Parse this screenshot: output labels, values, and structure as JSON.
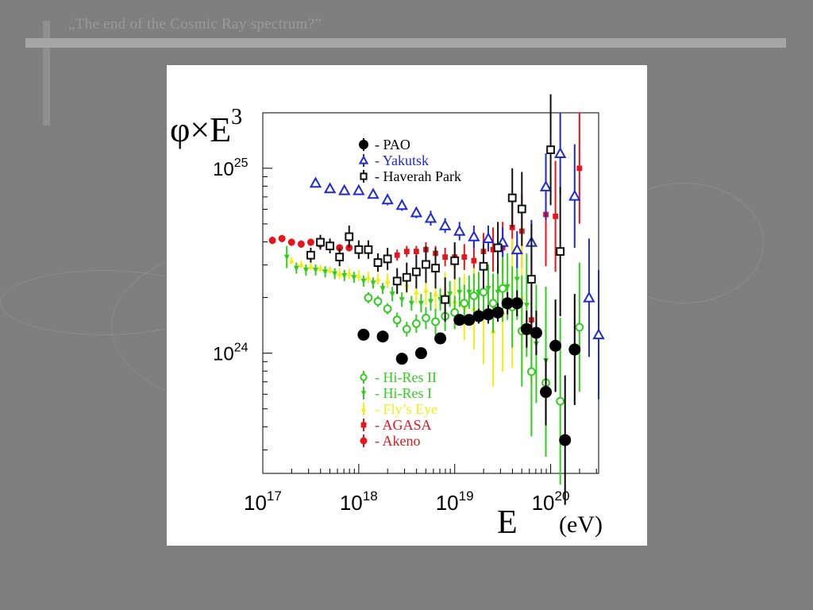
{
  "slide": {
    "title": "„The end of the Cosmic Ray spectrum?”"
  },
  "chart_data": {
    "type": "scatter",
    "title": "",
    "ylabel_main": "φ×E",
    "ylabel_exp": "3",
    "xlabel": "E",
    "xunit": "(eV)",
    "xscale": "log",
    "yscale": "log",
    "xlim_log10": [
      17,
      20.5
    ],
    "ylim_log10": [
      23.35,
      25.3
    ],
    "x_ticks": [
      {
        "exp": 17,
        "base": "10",
        "sup": "17"
      },
      {
        "exp": 18,
        "base": "10",
        "sup": "18"
      },
      {
        "exp": 19,
        "base": "10",
        "sup": "19"
      },
      {
        "exp": 20,
        "base": "10",
        "sup": "20"
      }
    ],
    "y_ticks": [
      {
        "exp": 24,
        "base": "10",
        "sup": "24"
      },
      {
        "exp": 25,
        "base": "10",
        "sup": "25"
      }
    ],
    "legend_top": [
      {
        "series": "pao",
        "label": "- PAO"
      },
      {
        "series": "yakutsk",
        "label": "- Yakutsk"
      },
      {
        "series": "haverah",
        "label": "- Haverah Park"
      }
    ],
    "legend_bottom": [
      {
        "series": "hires2",
        "label": "- Hi-Res II"
      },
      {
        "series": "hires1",
        "label": "- Hi-Res I"
      },
      {
        "series": "flyseye",
        "label": "- Fly’s Eye"
      },
      {
        "series": "agasa",
        "label": "- AGASA"
      },
      {
        "series": "akeno",
        "label": "- Akeno"
      }
    ],
    "series": [
      {
        "key": "akeno",
        "name": "Akeno",
        "color": "#e8141b",
        "marker": "filled-circle",
        "points": [
          [
            17.1,
            24.61,
            0.02
          ],
          [
            17.2,
            24.62,
            0.02
          ],
          [
            17.3,
            24.6,
            0.02
          ],
          [
            17.4,
            24.59,
            0.02
          ],
          [
            17.5,
            24.6,
            0.02
          ],
          [
            17.6,
            24.59,
            0.02
          ],
          [
            17.7,
            24.58,
            0.02
          ],
          [
            17.8,
            24.57,
            0.02
          ],
          [
            17.9,
            24.57,
            0.02
          ]
        ]
      },
      {
        "key": "agasa",
        "name": "AGASA",
        "color": "#e8141b",
        "marker": "filled-square",
        "points": [
          [
            18.4,
            24.53,
            0.03
          ],
          [
            18.5,
            24.55,
            0.03
          ],
          [
            18.6,
            24.55,
            0.03
          ],
          [
            18.7,
            24.56,
            0.04
          ],
          [
            18.8,
            24.54,
            0.04
          ],
          [
            18.9,
            24.52,
            0.05
          ],
          [
            19.0,
            24.52,
            0.06
          ],
          [
            19.1,
            24.52,
            0.07
          ],
          [
            19.2,
            24.5,
            0.09
          ],
          [
            19.3,
            24.55,
            0.1
          ],
          [
            19.4,
            24.56,
            0.12
          ],
          [
            19.5,
            24.57,
            0.14
          ],
          [
            19.6,
            24.68,
            0.15
          ],
          [
            19.7,
            24.66,
            0.2
          ],
          [
            19.8,
            24.18,
            0.35
          ],
          [
            19.95,
            24.75,
            0.28
          ],
          [
            20.05,
            24.74,
            0.3
          ],
          [
            20.3,
            25.0,
            0.3
          ]
        ]
      },
      {
        "key": "flyseye",
        "name": "Fly’s Eye",
        "color": "#f1ef12",
        "marker": "filled-triangle",
        "points": [
          [
            17.3,
            24.5,
            0.02
          ],
          [
            17.4,
            24.48,
            0.02
          ],
          [
            17.5,
            24.47,
            0.02
          ],
          [
            17.6,
            24.46,
            0.02
          ],
          [
            17.7,
            24.45,
            0.02
          ],
          [
            17.8,
            24.43,
            0.03
          ],
          [
            17.9,
            24.43,
            0.03
          ],
          [
            18.0,
            24.42,
            0.03
          ],
          [
            18.1,
            24.41,
            0.03
          ],
          [
            18.2,
            24.4,
            0.03
          ],
          [
            18.3,
            24.39,
            0.04
          ],
          [
            18.4,
            24.39,
            0.04
          ],
          [
            18.5,
            24.37,
            0.05
          ],
          [
            18.6,
            24.33,
            0.06
          ],
          [
            18.7,
            24.34,
            0.08
          ],
          [
            18.8,
            24.32,
            0.1
          ],
          [
            18.9,
            24.32,
            0.12
          ],
          [
            19.0,
            24.28,
            0.15
          ],
          [
            19.1,
            24.25,
            0.18
          ],
          [
            19.2,
            24.24,
            0.22
          ],
          [
            19.3,
            24.2,
            0.26
          ],
          [
            19.4,
            24.12,
            0.3
          ],
          [
            19.5,
            24.22,
            0.32
          ],
          [
            19.6,
            24.27,
            0.35
          ],
          [
            19.7,
            24.3,
            0.4
          ]
        ]
      },
      {
        "key": "hires1",
        "name": "Hi-Res I",
        "color": "#33cc20",
        "marker": "filled-inverted-triangle",
        "points": [
          [
            17.25,
            24.52,
            0.06
          ],
          [
            17.35,
            24.46,
            0.03
          ],
          [
            17.45,
            24.45,
            0.03
          ],
          [
            17.55,
            24.45,
            0.03
          ],
          [
            17.65,
            24.44,
            0.03
          ],
          [
            17.75,
            24.43,
            0.03
          ],
          [
            17.85,
            24.42,
            0.03
          ],
          [
            17.95,
            24.41,
            0.03
          ],
          [
            18.05,
            24.39,
            0.03
          ],
          [
            18.15,
            24.38,
            0.03
          ],
          [
            18.25,
            24.35,
            0.03
          ],
          [
            18.35,
            24.32,
            0.04
          ],
          [
            18.45,
            24.29,
            0.04
          ],
          [
            18.55,
            24.27,
            0.04
          ],
          [
            18.65,
            24.27,
            0.05
          ],
          [
            18.75,
            24.28,
            0.05
          ],
          [
            18.85,
            24.29,
            0.06
          ],
          [
            18.95,
            24.32,
            0.07
          ],
          [
            19.05,
            24.33,
            0.08
          ],
          [
            19.15,
            24.33,
            0.09
          ],
          [
            19.25,
            24.33,
            0.11
          ],
          [
            19.35,
            24.35,
            0.13
          ],
          [
            19.45,
            24.33,
            0.15
          ],
          [
            19.55,
            24.36,
            0.18
          ],
          [
            19.65,
            24.4,
            0.22
          ],
          [
            19.75,
            24.26,
            0.28
          ],
          [
            19.85,
            24.05,
            0.32
          ],
          [
            19.95,
            23.96,
            0.4
          ]
        ]
      },
      {
        "key": "hires2",
        "name": "Hi-Res II",
        "color": "#33cc20",
        "marker": "open-circle",
        "points": [
          [
            18.1,
            24.3,
            0.03
          ],
          [
            18.2,
            24.28,
            0.03
          ],
          [
            18.3,
            24.24,
            0.03
          ],
          [
            18.4,
            24.18,
            0.04
          ],
          [
            18.5,
            24.13,
            0.04
          ],
          [
            18.6,
            24.16,
            0.05
          ],
          [
            18.7,
            24.19,
            0.06
          ],
          [
            18.8,
            24.17,
            0.07
          ],
          [
            18.9,
            24.2,
            0.08
          ],
          [
            19.0,
            24.22,
            0.09
          ],
          [
            19.1,
            24.27,
            0.1
          ],
          [
            19.2,
            24.31,
            0.12
          ],
          [
            19.3,
            24.33,
            0.14
          ],
          [
            19.4,
            24.27,
            0.16
          ],
          [
            19.5,
            24.35,
            0.18
          ],
          [
            19.6,
            24.25,
            0.22
          ],
          [
            19.7,
            24.12,
            0.3
          ],
          [
            19.8,
            23.9,
            0.35
          ],
          [
            19.95,
            23.84,
            0.4
          ],
          [
            20.1,
            23.74,
            0.45
          ],
          [
            20.3,
            24.14,
            0.35
          ]
        ]
      },
      {
        "key": "yakutsk",
        "name": "Yakutsk",
        "color": "#1f2ad0",
        "marker": "open-triangle",
        "points": [
          [
            17.55,
            24.92,
            0.02
          ],
          [
            17.7,
            24.89,
            0.02
          ],
          [
            17.85,
            24.88,
            0.02
          ],
          [
            18.0,
            24.88,
            0.02
          ],
          [
            18.15,
            24.86,
            0.02
          ],
          [
            18.3,
            24.83,
            0.03
          ],
          [
            18.45,
            24.8,
            0.03
          ],
          [
            18.6,
            24.76,
            0.03
          ],
          [
            18.75,
            24.73,
            0.04
          ],
          [
            18.9,
            24.69,
            0.04
          ],
          [
            19.05,
            24.66,
            0.05
          ],
          [
            19.2,
            24.63,
            0.06
          ],
          [
            19.35,
            24.62,
            0.07
          ],
          [
            19.5,
            24.6,
            0.08
          ],
          [
            19.65,
            24.56,
            0.1
          ],
          [
            19.8,
            24.6,
            0.12
          ],
          [
            19.95,
            24.9,
            0.18
          ],
          [
            20.1,
            25.08,
            0.22
          ],
          [
            20.25,
            24.85,
            0.28
          ],
          [
            20.4,
            24.3,
            0.32
          ],
          [
            20.5,
            24.1,
            0.35
          ]
        ]
      },
      {
        "key": "haverah",
        "name": "Haverah Park",
        "color": "#111111",
        "marker": "open-square",
        "points": [
          [
            17.5,
            24.53,
            0.04
          ],
          [
            17.6,
            24.6,
            0.04
          ],
          [
            17.7,
            24.58,
            0.04
          ],
          [
            17.8,
            24.52,
            0.05
          ],
          [
            17.9,
            24.63,
            0.06
          ],
          [
            18.0,
            24.56,
            0.05
          ],
          [
            18.1,
            24.56,
            0.05
          ],
          [
            18.2,
            24.49,
            0.05
          ],
          [
            18.3,
            24.51,
            0.06
          ],
          [
            18.4,
            24.39,
            0.07
          ],
          [
            18.5,
            24.41,
            0.08
          ],
          [
            18.6,
            24.44,
            0.09
          ],
          [
            18.7,
            24.48,
            0.1
          ],
          [
            18.8,
            24.46,
            0.11
          ],
          [
            18.9,
            24.29,
            0.12
          ],
          [
            19.0,
            24.5,
            0.1
          ],
          [
            19.3,
            24.47,
            0.12
          ],
          [
            19.45,
            24.57,
            0.14
          ],
          [
            19.6,
            24.84,
            0.16
          ],
          [
            19.7,
            24.78,
            0.2
          ],
          [
            19.8,
            24.4,
            0.3
          ],
          [
            20.0,
            25.1,
            0.3
          ],
          [
            20.1,
            24.55,
            0.35
          ]
        ]
      },
      {
        "key": "pao",
        "name": "PAO",
        "color": "#000000",
        "marker": "filled-circle",
        "points": [
          [
            18.05,
            24.1,
            0.02
          ],
          [
            18.25,
            24.09,
            0.02
          ],
          [
            18.45,
            23.97,
            0.02
          ],
          [
            18.65,
            24.0,
            0.02
          ],
          [
            18.85,
            24.08,
            0.03
          ],
          [
            19.05,
            24.18,
            0.03
          ],
          [
            19.15,
            24.18,
            0.03
          ],
          [
            19.25,
            24.2,
            0.04
          ],
          [
            19.35,
            24.21,
            0.05
          ],
          [
            19.45,
            24.22,
            0.05
          ],
          [
            19.55,
            24.27,
            0.06
          ],
          [
            19.65,
            24.27,
            0.07
          ],
          [
            19.75,
            24.13,
            0.1
          ],
          [
            19.85,
            24.11,
            0.12
          ],
          [
            19.95,
            23.79,
            0.18
          ],
          [
            20.05,
            24.04,
            0.25
          ],
          [
            20.15,
            23.53,
            0.35
          ],
          [
            20.25,
            24.02,
            0.3
          ]
        ]
      }
    ]
  }
}
